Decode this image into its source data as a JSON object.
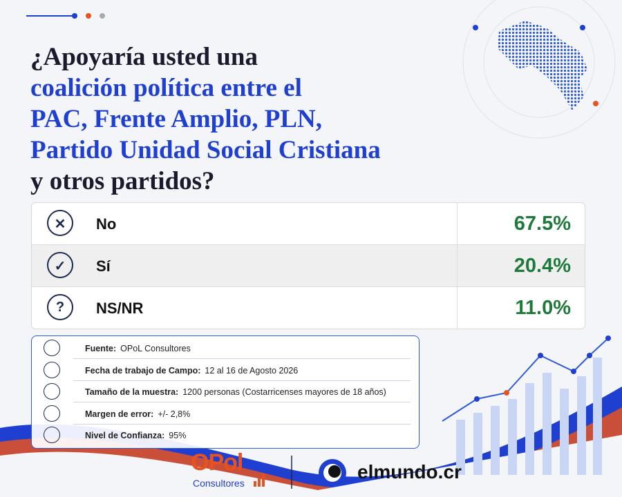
{
  "title": {
    "lead": "¿Apoyaría usted una",
    "highlight": [
      "coalición política entre el",
      "PAC, Frente Amplio, PLN,",
      "Partido Unidad Social Cristiana"
    ],
    "tail": "y otros partidos?"
  },
  "table": {
    "rows": [
      {
        "label": "No",
        "value": "67.5%"
      },
      {
        "label": "Sí",
        "value": "20.4%"
      },
      {
        "label": "NS/NR",
        "value": "11.0%"
      }
    ]
  },
  "details": [
    {
      "label": "Fuente:",
      "value": "OPoL Consultores"
    },
    {
      "label": "Fecha de trabajo de Campo:",
      "value": "12 al 16 de Agosto 2026"
    },
    {
      "label": "Tamaño de la muestra:",
      "value": "1200 personas (Costarricenses mayores de 18 años)"
    },
    {
      "label": "Margen de error:",
      "value": "+/- 2,8%"
    },
    {
      "label": "Nivel de Confianza:",
      "value": "95%"
    }
  ],
  "footer": {
    "brand": "OPol",
    "brand_sub": "Consultores",
    "partner": "elmundo.cr"
  }
}
